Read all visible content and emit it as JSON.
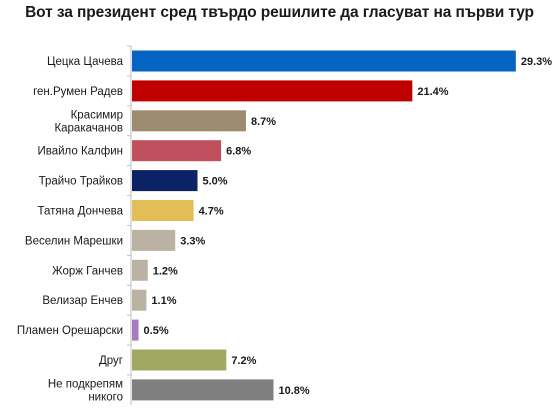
{
  "chart_data": {
    "type": "bar",
    "orientation": "horizontal",
    "title": "Вот за президент сред твърдо решилите да гласуват на първи тур",
    "xlabel": "",
    "ylabel": "",
    "xlim": [
      0,
      30
    ],
    "grid": false,
    "legend": "none",
    "value_suffix": "%",
    "categories": [
      "Цецка Цачева",
      "ген.Румен Радев",
      "Красимир Каракачанов",
      "Ивайло Калфин",
      "Трайчо Трайков",
      "Татяна Дончева",
      "Веселин Марешки",
      "Жорж Ганчев",
      "Велизар Енчев",
      "Пламен Орешарски",
      "Друг",
      "Не подкрепям никого"
    ],
    "category_lines": [
      [
        "Цецка Цачева"
      ],
      [
        "ген.Румен Радев"
      ],
      [
        "Красимир",
        "Каракачанов"
      ],
      [
        "Ивайло Калфин"
      ],
      [
        "Трайчо Трайков"
      ],
      [
        "Татяна Дончева"
      ],
      [
        "Веселин Марешки"
      ],
      [
        "Жорж Ганчев"
      ],
      [
        "Велизар Енчев"
      ],
      [
        "Пламен Орешарски"
      ],
      [
        "Друг"
      ],
      [
        "Не подкрепям",
        "никого"
      ]
    ],
    "values": [
      29.3,
      21.4,
      8.7,
      6.8,
      5.0,
      4.7,
      3.3,
      1.2,
      1.1,
      0.5,
      7.2,
      10.8
    ],
    "value_labels": [
      "29.3%",
      "21.4%",
      "8.7%",
      "6.8%",
      "5.0%",
      "4.7%",
      "3.3%",
      "1.2%",
      "1.1%",
      "0.5%",
      "7.2%",
      "10.8%"
    ],
    "colors": [
      "#0563c1",
      "#c00000",
      "#9c8b6e",
      "#c0505e",
      "#0b2265",
      "#e3bd55",
      "#bcb2a3",
      "#bcb2a3",
      "#bcb2a3",
      "#a77bbd",
      "#a0a862",
      "#7f7f7f"
    ]
  }
}
